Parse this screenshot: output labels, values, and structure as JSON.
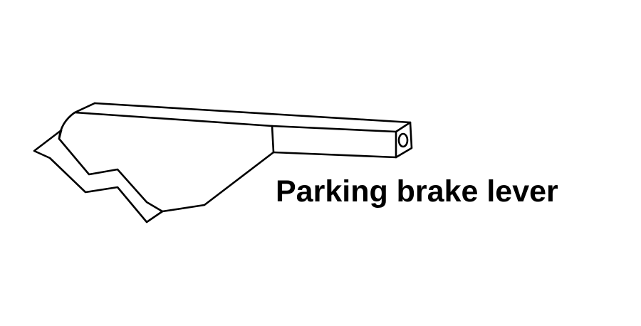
{
  "diagram": {
    "label": "Parking brake lever",
    "line_color": "#000000",
    "background_color": "#ffffff",
    "icon": "parking-brake-lever-illustration"
  }
}
